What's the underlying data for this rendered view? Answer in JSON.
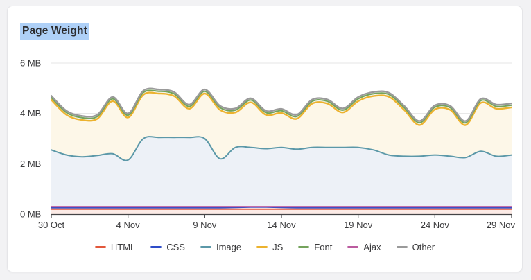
{
  "card": {
    "title": "Page Weight",
    "title_selection_color": "#aed0f7"
  },
  "chart_data": {
    "type": "area",
    "stacked": true,
    "title": "Page Weight",
    "unit": "MB",
    "ylim": [
      0,
      6
    ],
    "grid": "horizontal",
    "legend_position": "bottom",
    "days_span": 31,
    "x_range_labels": [
      "30 Oct",
      "29 Nov"
    ],
    "x_ticks": [
      {
        "day": 0,
        "label": "30 Oct"
      },
      {
        "day": 5,
        "label": "4 Nov"
      },
      {
        "day": 10,
        "label": "9 Nov"
      },
      {
        "day": 15,
        "label": "14 Nov"
      },
      {
        "day": 20,
        "label": "19 Nov"
      },
      {
        "day": 25,
        "label": "24 Nov"
      },
      {
        "day": 30,
        "label": "29 Nov"
      }
    ],
    "y_ticks": [
      {
        "value": 0,
        "label": "0 MB"
      },
      {
        "value": 2,
        "label": "2 MB"
      },
      {
        "value": 4,
        "label": "4 MB"
      },
      {
        "value": 6,
        "label": "6 MB"
      }
    ],
    "note": "values are the plotted cumulative top-edge of each stacked band, in MB, one point per day 30 Oct - 29 Nov",
    "series": [
      {
        "name": "HTML",
        "color": "#e2573b",
        "stroke_width": 2,
        "fill_below": "#fcebe6",
        "values": [
          0.2,
          0.2,
          0.2,
          0.2,
          0.2,
          0.2,
          0.2,
          0.2,
          0.2,
          0.2,
          0.2,
          0.2,
          0.2,
          0.2,
          0.2,
          0.2,
          0.2,
          0.2,
          0.2,
          0.2,
          0.2,
          0.2,
          0.2,
          0.2,
          0.2,
          0.2,
          0.2,
          0.2,
          0.2,
          0.2,
          0.2
        ]
      },
      {
        "name": "CSS",
        "color": "#2d4cc8",
        "stroke_width": 2,
        "fill_below": "none",
        "values": [
          0.26,
          0.26,
          0.26,
          0.26,
          0.26,
          0.26,
          0.26,
          0.26,
          0.26,
          0.26,
          0.26,
          0.26,
          0.27,
          0.28,
          0.28,
          0.27,
          0.26,
          0.26,
          0.26,
          0.26,
          0.26,
          0.26,
          0.26,
          0.26,
          0.26,
          0.26,
          0.26,
          0.26,
          0.26,
          0.26,
          0.26
        ]
      },
      {
        "name": "Ajax",
        "color": "#bb5b9f",
        "stroke_width": 2,
        "fill_below": "none",
        "values": [
          0.3,
          0.3,
          0.3,
          0.3,
          0.3,
          0.3,
          0.3,
          0.3,
          0.3,
          0.3,
          0.3,
          0.3,
          0.3,
          0.3,
          0.3,
          0.3,
          0.3,
          0.3,
          0.3,
          0.3,
          0.3,
          0.3,
          0.3,
          0.3,
          0.3,
          0.3,
          0.3,
          0.3,
          0.3,
          0.3,
          0.3
        ]
      },
      {
        "name": "Image",
        "color": "#5b98a8",
        "stroke_width": 2,
        "fill_below": "#edf1f7",
        "values": [
          2.55,
          2.35,
          2.28,
          2.33,
          2.4,
          2.15,
          3.0,
          3.05,
          3.05,
          3.05,
          3.0,
          2.2,
          2.65,
          2.65,
          2.6,
          2.65,
          2.58,
          2.65,
          2.65,
          2.65,
          2.65,
          2.55,
          2.35,
          2.3,
          2.3,
          2.35,
          2.3,
          2.25,
          2.5,
          2.3,
          2.35
        ]
      },
      {
        "name": "JS",
        "color": "#ecb22e",
        "stroke_width": 2.4,
        "fill_below": "#fdf7e8",
        "values": [
          4.54,
          3.94,
          3.74,
          3.79,
          4.49,
          3.84,
          4.74,
          4.79,
          4.69,
          4.19,
          4.79,
          4.14,
          4.04,
          4.44,
          3.94,
          4.02,
          3.79,
          4.39,
          4.39,
          4.04,
          4.49,
          4.69,
          4.66,
          4.14,
          3.54,
          4.16,
          4.14,
          3.54,
          4.42,
          4.19,
          4.24
        ]
      },
      {
        "name": "Font",
        "color": "#74a35c",
        "stroke_width": 2,
        "fill_below": "#f3f6ee",
        "values": [
          4.63,
          4.03,
          3.83,
          3.88,
          4.58,
          3.93,
          4.83,
          4.88,
          4.78,
          4.28,
          4.88,
          4.23,
          4.13,
          4.53,
          4.03,
          4.11,
          3.88,
          4.48,
          4.48,
          4.13,
          4.58,
          4.78,
          4.75,
          4.23,
          3.63,
          4.25,
          4.23,
          3.63,
          4.51,
          4.28,
          4.33
        ]
      },
      {
        "name": "Other",
        "color": "#9a9a9a",
        "stroke_width": 2.4,
        "fill_below": "#fafaf9",
        "values": [
          4.7,
          4.1,
          3.9,
          3.95,
          4.65,
          4.0,
          4.9,
          4.95,
          4.85,
          4.35,
          4.95,
          4.3,
          4.2,
          4.6,
          4.1,
          4.18,
          3.95,
          4.55,
          4.55,
          4.2,
          4.65,
          4.85,
          4.82,
          4.3,
          3.7,
          4.32,
          4.3,
          3.7,
          4.58,
          4.35,
          4.4
        ]
      }
    ],
    "legend": [
      {
        "label": "HTML",
        "color": "#e2573b"
      },
      {
        "label": "CSS",
        "color": "#2d4cc8"
      },
      {
        "label": "Image",
        "color": "#5b98a8"
      },
      {
        "label": "JS",
        "color": "#ecb22e"
      },
      {
        "label": "Font",
        "color": "#74a35c"
      },
      {
        "label": "Ajax",
        "color": "#bb5b9f"
      },
      {
        "label": "Other",
        "color": "#9a9a9a"
      }
    ],
    "axis_color": "#444446",
    "grid_color": "#e5e5e5",
    "tick_label_color": "#3a3a3c"
  }
}
